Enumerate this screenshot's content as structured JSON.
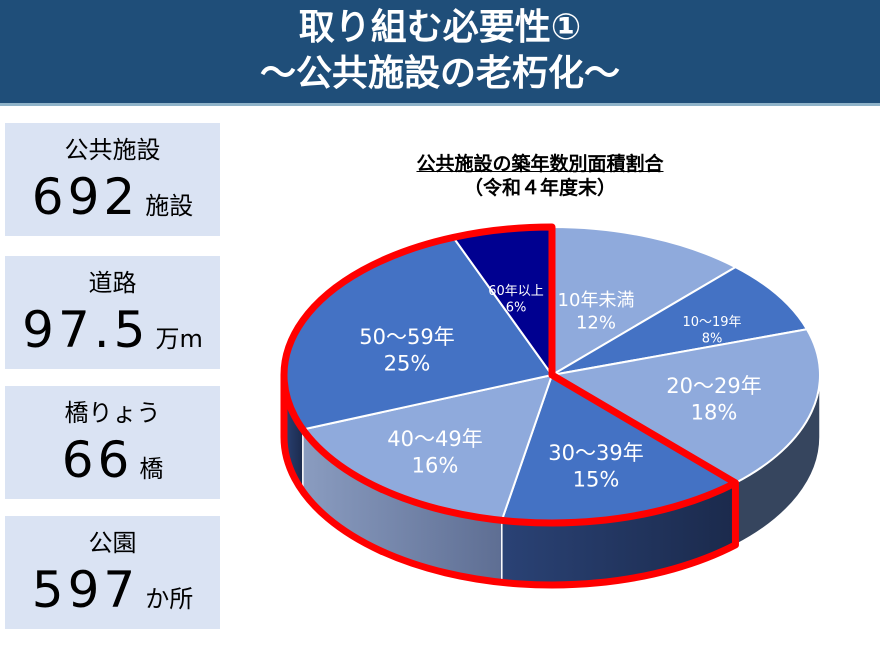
{
  "header": {
    "title_line1": "取り組む必要性①",
    "title_line2": "～公共施設の老朽化～",
    "bg_color": "#1f4e79"
  },
  "stats": [
    {
      "label": "公共施設",
      "value": "692",
      "unit": "施設"
    },
    {
      "label": "道路",
      "value": "97.5",
      "unit": "万m"
    },
    {
      "label": "橋りょう",
      "value": "66",
      "unit": "橋"
    },
    {
      "label": "公園",
      "value": "597",
      "unit": "か所"
    }
  ],
  "chart_title": {
    "line1": "公共施設の築年数別面積割合",
    "line2": "（令和４年度末）"
  },
  "chart_data": {
    "type": "pie",
    "title": "公共施設の築年数別面積割合（令和４年度末）",
    "categories": [
      "10年未満",
      "10～19年",
      "20～29年",
      "30～39年",
      "40～49年",
      "50～59年",
      "60年以上"
    ],
    "values": [
      12,
      8,
      18,
      15,
      16,
      25,
      6
    ],
    "unit": "%",
    "colors": [
      "#8faadc",
      "#4472c4",
      "#8faadc",
      "#4472c4",
      "#8faadc",
      "#4472c4",
      "#000090"
    ],
    "highlight": {
      "categories": [
        "30～39年",
        "40～49年",
        "50～59年",
        "60年以上"
      ],
      "outline_color": "#ff0000"
    },
    "style": "3d"
  },
  "labels": [
    {
      "name": "10年未満",
      "pct": "12%"
    },
    {
      "name": "10～19年",
      "pct": "8%"
    },
    {
      "name": "20～29年",
      "pct": "18%"
    },
    {
      "name": "30～39年",
      "pct": "15%"
    },
    {
      "name": "40～49年",
      "pct": "16%"
    },
    {
      "name": "50～59年",
      "pct": "25%"
    },
    {
      "name": "60年以上",
      "pct": "6%"
    }
  ]
}
